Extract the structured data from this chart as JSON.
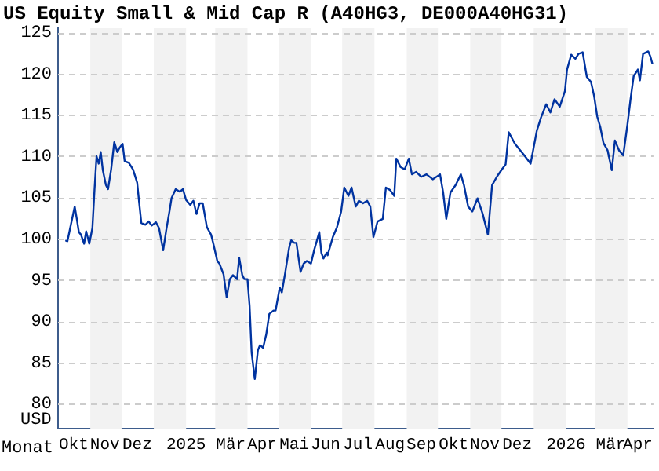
{
  "chart_data": {
    "type": "line",
    "title": "US Equity Small & Mid Cap R (A40HG3, DE000A40HG31)",
    "xlabel": "Monat",
    "ylabel": "USD",
    "xlim": [
      "2024-10-01",
      "2026-04-26"
    ],
    "xticks": [
      {
        "value": "2024-10-16",
        "label": "Okt"
      },
      {
        "value": "2024-11-15",
        "label": "Nov"
      },
      {
        "value": "2024-12-16",
        "label": "Dez"
      },
      {
        "value": "2025-02-01",
        "label": "2025"
      },
      {
        "value": "2025-03-16",
        "label": "Mär"
      },
      {
        "value": "2025-04-15",
        "label": "Apr"
      },
      {
        "value": "2025-05-16",
        "label": "Mai"
      },
      {
        "value": "2025-06-15",
        "label": "Jun"
      },
      {
        "value": "2025-07-16",
        "label": "Jul"
      },
      {
        "value": "2025-08-16",
        "label": "Aug"
      },
      {
        "value": "2025-09-15",
        "label": "Sep"
      },
      {
        "value": "2025-10-16",
        "label": "Okt"
      },
      {
        "value": "2025-11-15",
        "label": "Nov"
      },
      {
        "value": "2025-12-16",
        "label": "Dez"
      },
      {
        "value": "2026-02-01",
        "label": "2026"
      },
      {
        "value": "2026-03-16",
        "label": "Mär"
      },
      {
        "value": "2026-04-11",
        "label": "Apr"
      }
    ],
    "ylim": [
      77,
      125.5
    ],
    "yticks": [
      80,
      85,
      90,
      95,
      100,
      105,
      110,
      115,
      120,
      125
    ],
    "grid": "y",
    "bands": [
      {
        "axis": "x",
        "from": "2024-11-01",
        "to": "2024-12-01",
        "color": "#f2f2f2"
      },
      {
        "axis": "x",
        "from": "2025-01-01",
        "to": "2025-02-01",
        "color": "#f2f2f2"
      },
      {
        "axis": "x",
        "from": "2025-03-01",
        "to": "2025-04-01",
        "color": "#f2f2f2"
      },
      {
        "axis": "x",
        "from": "2025-05-01",
        "to": "2025-06-01",
        "color": "#f2f2f2"
      },
      {
        "axis": "x",
        "from": "2025-07-01",
        "to": "2025-08-01",
        "color": "#f2f2f2"
      },
      {
        "axis": "x",
        "from": "2025-09-01",
        "to": "2025-10-01",
        "color": "#f2f2f2"
      },
      {
        "axis": "x",
        "from": "2025-11-01",
        "to": "2025-12-01",
        "color": "#f2f2f2"
      },
      {
        "axis": "x",
        "from": "2026-01-01",
        "to": "2026-02-01",
        "color": "#f2f2f2"
      },
      {
        "axis": "x",
        "from": "2026-03-01",
        "to": "2026-04-01",
        "color": "#f2f2f2"
      }
    ],
    "x": [
      "2024-10-08",
      "2024-10-10",
      "2024-10-14",
      "2024-10-17",
      "2024-10-19",
      "2024-10-21",
      "2024-10-23",
      "2024-10-26",
      "2024-10-28",
      "2024-10-31",
      "2024-11-03",
      "2024-11-05",
      "2024-11-07",
      "2024-11-09",
      "2024-11-11",
      "2024-11-13",
      "2024-11-16",
      "2024-11-18",
      "2024-11-21",
      "2024-11-24",
      "2024-11-27",
      "2024-11-29",
      "2024-12-02",
      "2024-12-04",
      "2024-12-08",
      "2024-12-12",
      "2024-12-16",
      "2024-12-18",
      "2024-12-20",
      "2024-12-24",
      "2024-12-27",
      "2024-12-30",
      "2025-01-03",
      "2025-01-06",
      "2025-01-10",
      "2025-01-13",
      "2025-01-16",
      "2025-01-18",
      "2025-01-22",
      "2025-01-26",
      "2025-01-29",
      "2025-02-01",
      "2025-02-05",
      "2025-02-08",
      "2025-02-11",
      "2025-02-14",
      "2025-02-17",
      "2025-02-21",
      "2025-02-25",
      "2025-02-27",
      "2025-03-03",
      "2025-03-05",
      "2025-03-09",
      "2025-03-12",
      "2025-03-15",
      "2025-03-18",
      "2025-03-22",
      "2025-03-24",
      "2025-03-27",
      "2025-03-29",
      "2025-04-01",
      "2025-04-03",
      "2025-04-05",
      "2025-04-08",
      "2025-04-11",
      "2025-04-13",
      "2025-04-16",
      "2025-04-19",
      "2025-04-22",
      "2025-04-26",
      "2025-04-28",
      "2025-05-02",
      "2025-05-04",
      "2025-05-07",
      "2025-05-11",
      "2025-05-13",
      "2025-05-16",
      "2025-05-18",
      "2025-05-22",
      "2025-05-25",
      "2025-05-28",
      "2025-06-01",
      "2025-06-04",
      "2025-06-09",
      "2025-06-11",
      "2025-06-13",
      "2025-06-16",
      "2025-06-17",
      "2025-06-22",
      "2025-06-26",
      "2025-06-30",
      "2025-07-03",
      "2025-07-07",
      "2025-07-10",
      "2025-07-14",
      "2025-07-17",
      "2025-07-21",
      "2025-07-25",
      "2025-07-28",
      "2025-07-31",
      "2025-08-04",
      "2025-08-09",
      "2025-08-12",
      "2025-08-16",
      "2025-08-20",
      "2025-08-22",
      "2025-08-26",
      "2025-08-30",
      "2025-09-03",
      "2025-09-06",
      "2025-09-10",
      "2025-09-15",
      "2025-09-20",
      "2025-09-26",
      "2025-10-03",
      "2025-10-06",
      "2025-10-09",
      "2025-10-13",
      "2025-10-18",
      "2025-10-23",
      "2025-10-26",
      "2025-10-30",
      "2025-11-03",
      "2025-11-08",
      "2025-11-13",
      "2025-11-18",
      "2025-11-22",
      "2025-11-27",
      "2025-12-02",
      "2025-12-05",
      "2025-12-08",
      "2025-12-14",
      "2025-12-23",
      "2025-12-29",
      "2026-01-04",
      "2026-01-08",
      "2026-01-13",
      "2026-01-17",
      "2026-01-21",
      "2026-01-26",
      "2026-01-31",
      "2026-02-02",
      "2026-02-06",
      "2026-02-10",
      "2026-02-13",
      "2026-02-17",
      "2026-02-21",
      "2026-02-25",
      "2026-02-28",
      "2026-03-03",
      "2026-03-06",
      "2026-03-09",
      "2026-03-13",
      "2026-03-17",
      "2026-03-20",
      "2026-03-24",
      "2026-03-28",
      "2026-04-01",
      "2026-04-04",
      "2026-04-07",
      "2026-04-11",
      "2026-04-13",
      "2026-04-16",
      "2026-04-21",
      "2026-04-23",
      "2026-04-25"
    ],
    "series": [
      {
        "color": "#0033a0",
        "values": [
          99.8,
          99.7,
          102.1,
          103.9,
          102.4,
          100.8,
          100.5,
          99.4,
          100.9,
          99.4,
          101.3,
          105.9,
          110.0,
          109.1,
          110.5,
          108.3,
          106.5,
          106.0,
          108.4,
          111.7,
          110.5,
          111.0,
          111.5,
          109.4,
          109.2,
          108.4,
          106.8,
          104.3,
          101.9,
          101.7,
          102.1,
          101.6,
          102.0,
          101.3,
          98.6,
          101.1,
          103.3,
          104.9,
          106.0,
          105.7,
          106.0,
          104.7,
          104.1,
          104.6,
          103.0,
          104.3,
          104.3,
          101.4,
          100.5,
          99.5,
          97.3,
          97.0,
          95.7,
          92.9,
          95.1,
          95.6,
          95.1,
          97.7,
          95.6,
          95.1,
          95.1,
          91.9,
          86.2,
          83.0,
          86.5,
          87.1,
          86.8,
          88.4,
          90.9,
          91.3,
          91.3,
          94.1,
          93.5,
          95.7,
          98.9,
          99.8,
          99.5,
          99.5,
          96.0,
          97.0,
          97.3,
          97.0,
          98.6,
          100.8,
          98.3,
          97.6,
          98.3,
          98.0,
          100.2,
          101.4,
          103.3,
          106.2,
          105.2,
          106.2,
          103.9,
          104.6,
          104.3,
          104.6,
          103.9,
          100.2,
          102.1,
          102.4,
          106.2,
          105.9,
          105.2,
          109.7,
          108.7,
          108.4,
          109.7,
          107.8,
          108.1,
          107.5,
          107.8,
          107.2,
          107.8,
          105.6,
          102.4,
          105.6,
          106.5,
          107.8,
          106.5,
          103.9,
          103.3,
          104.9,
          103.0,
          100.5,
          106.5,
          107.6,
          108.5,
          109.0,
          112.9,
          111.5,
          110.1,
          109.1,
          113.1,
          114.7,
          116.3,
          115.3,
          116.9,
          116.0,
          117.9,
          120.5,
          122.3,
          121.8,
          122.4,
          122.6,
          119.6,
          119.0,
          117.3,
          114.8,
          113.5,
          111.6,
          110.7,
          108.3,
          111.9,
          110.7,
          110.1,
          113.8,
          116.9,
          119.7,
          120.5,
          119.2,
          122.4,
          122.7,
          122.1,
          121.2
        ]
      }
    ]
  }
}
